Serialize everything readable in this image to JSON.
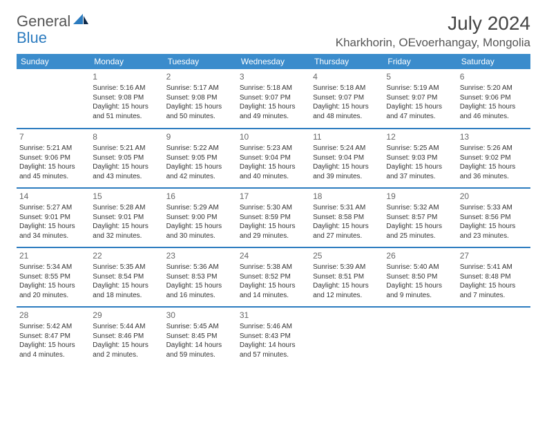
{
  "brand": {
    "part1": "General",
    "part2": "Blue"
  },
  "title": "July 2024",
  "location": "Kharkhorin, OEvoerhangay, Mongolia",
  "colors": {
    "header_bg": "#3b8ccc",
    "header_text": "#ffffff",
    "rule": "#2b7bbf",
    "text": "#333333",
    "daynum": "#666666",
    "brand_blue": "#2b7bbf",
    "brand_gray": "#555555",
    "background": "#ffffff"
  },
  "columns": [
    "Sunday",
    "Monday",
    "Tuesday",
    "Wednesday",
    "Thursday",
    "Friday",
    "Saturday"
  ],
  "weeks": [
    [
      {
        "day": "",
        "lines": []
      },
      {
        "day": "1",
        "lines": [
          "Sunrise: 5:16 AM",
          "Sunset: 9:08 PM",
          "Daylight: 15 hours",
          "and 51 minutes."
        ]
      },
      {
        "day": "2",
        "lines": [
          "Sunrise: 5:17 AM",
          "Sunset: 9:08 PM",
          "Daylight: 15 hours",
          "and 50 minutes."
        ]
      },
      {
        "day": "3",
        "lines": [
          "Sunrise: 5:18 AM",
          "Sunset: 9:07 PM",
          "Daylight: 15 hours",
          "and 49 minutes."
        ]
      },
      {
        "day": "4",
        "lines": [
          "Sunrise: 5:18 AM",
          "Sunset: 9:07 PM",
          "Daylight: 15 hours",
          "and 48 minutes."
        ]
      },
      {
        "day": "5",
        "lines": [
          "Sunrise: 5:19 AM",
          "Sunset: 9:07 PM",
          "Daylight: 15 hours",
          "and 47 minutes."
        ]
      },
      {
        "day": "6",
        "lines": [
          "Sunrise: 5:20 AM",
          "Sunset: 9:06 PM",
          "Daylight: 15 hours",
          "and 46 minutes."
        ]
      }
    ],
    [
      {
        "day": "7",
        "lines": [
          "Sunrise: 5:21 AM",
          "Sunset: 9:06 PM",
          "Daylight: 15 hours",
          "and 45 minutes."
        ]
      },
      {
        "day": "8",
        "lines": [
          "Sunrise: 5:21 AM",
          "Sunset: 9:05 PM",
          "Daylight: 15 hours",
          "and 43 minutes."
        ]
      },
      {
        "day": "9",
        "lines": [
          "Sunrise: 5:22 AM",
          "Sunset: 9:05 PM",
          "Daylight: 15 hours",
          "and 42 minutes."
        ]
      },
      {
        "day": "10",
        "lines": [
          "Sunrise: 5:23 AM",
          "Sunset: 9:04 PM",
          "Daylight: 15 hours",
          "and 40 minutes."
        ]
      },
      {
        "day": "11",
        "lines": [
          "Sunrise: 5:24 AM",
          "Sunset: 9:04 PM",
          "Daylight: 15 hours",
          "and 39 minutes."
        ]
      },
      {
        "day": "12",
        "lines": [
          "Sunrise: 5:25 AM",
          "Sunset: 9:03 PM",
          "Daylight: 15 hours",
          "and 37 minutes."
        ]
      },
      {
        "day": "13",
        "lines": [
          "Sunrise: 5:26 AM",
          "Sunset: 9:02 PM",
          "Daylight: 15 hours",
          "and 36 minutes."
        ]
      }
    ],
    [
      {
        "day": "14",
        "lines": [
          "Sunrise: 5:27 AM",
          "Sunset: 9:01 PM",
          "Daylight: 15 hours",
          "and 34 minutes."
        ]
      },
      {
        "day": "15",
        "lines": [
          "Sunrise: 5:28 AM",
          "Sunset: 9:01 PM",
          "Daylight: 15 hours",
          "and 32 minutes."
        ]
      },
      {
        "day": "16",
        "lines": [
          "Sunrise: 5:29 AM",
          "Sunset: 9:00 PM",
          "Daylight: 15 hours",
          "and 30 minutes."
        ]
      },
      {
        "day": "17",
        "lines": [
          "Sunrise: 5:30 AM",
          "Sunset: 8:59 PM",
          "Daylight: 15 hours",
          "and 29 minutes."
        ]
      },
      {
        "day": "18",
        "lines": [
          "Sunrise: 5:31 AM",
          "Sunset: 8:58 PM",
          "Daylight: 15 hours",
          "and 27 minutes."
        ]
      },
      {
        "day": "19",
        "lines": [
          "Sunrise: 5:32 AM",
          "Sunset: 8:57 PM",
          "Daylight: 15 hours",
          "and 25 minutes."
        ]
      },
      {
        "day": "20",
        "lines": [
          "Sunrise: 5:33 AM",
          "Sunset: 8:56 PM",
          "Daylight: 15 hours",
          "and 23 minutes."
        ]
      }
    ],
    [
      {
        "day": "21",
        "lines": [
          "Sunrise: 5:34 AM",
          "Sunset: 8:55 PM",
          "Daylight: 15 hours",
          "and 20 minutes."
        ]
      },
      {
        "day": "22",
        "lines": [
          "Sunrise: 5:35 AM",
          "Sunset: 8:54 PM",
          "Daylight: 15 hours",
          "and 18 minutes."
        ]
      },
      {
        "day": "23",
        "lines": [
          "Sunrise: 5:36 AM",
          "Sunset: 8:53 PM",
          "Daylight: 15 hours",
          "and 16 minutes."
        ]
      },
      {
        "day": "24",
        "lines": [
          "Sunrise: 5:38 AM",
          "Sunset: 8:52 PM",
          "Daylight: 15 hours",
          "and 14 minutes."
        ]
      },
      {
        "day": "25",
        "lines": [
          "Sunrise: 5:39 AM",
          "Sunset: 8:51 PM",
          "Daylight: 15 hours",
          "and 12 minutes."
        ]
      },
      {
        "day": "26",
        "lines": [
          "Sunrise: 5:40 AM",
          "Sunset: 8:50 PM",
          "Daylight: 15 hours",
          "and 9 minutes."
        ]
      },
      {
        "day": "27",
        "lines": [
          "Sunrise: 5:41 AM",
          "Sunset: 8:48 PM",
          "Daylight: 15 hours",
          "and 7 minutes."
        ]
      }
    ],
    [
      {
        "day": "28",
        "lines": [
          "Sunrise: 5:42 AM",
          "Sunset: 8:47 PM",
          "Daylight: 15 hours",
          "and 4 minutes."
        ]
      },
      {
        "day": "29",
        "lines": [
          "Sunrise: 5:44 AM",
          "Sunset: 8:46 PM",
          "Daylight: 15 hours",
          "and 2 minutes."
        ]
      },
      {
        "day": "30",
        "lines": [
          "Sunrise: 5:45 AM",
          "Sunset: 8:45 PM",
          "Daylight: 14 hours",
          "and 59 minutes."
        ]
      },
      {
        "day": "31",
        "lines": [
          "Sunrise: 5:46 AM",
          "Sunset: 8:43 PM",
          "Daylight: 14 hours",
          "and 57 minutes."
        ]
      },
      {
        "day": "",
        "lines": []
      },
      {
        "day": "",
        "lines": []
      },
      {
        "day": "",
        "lines": []
      }
    ]
  ]
}
